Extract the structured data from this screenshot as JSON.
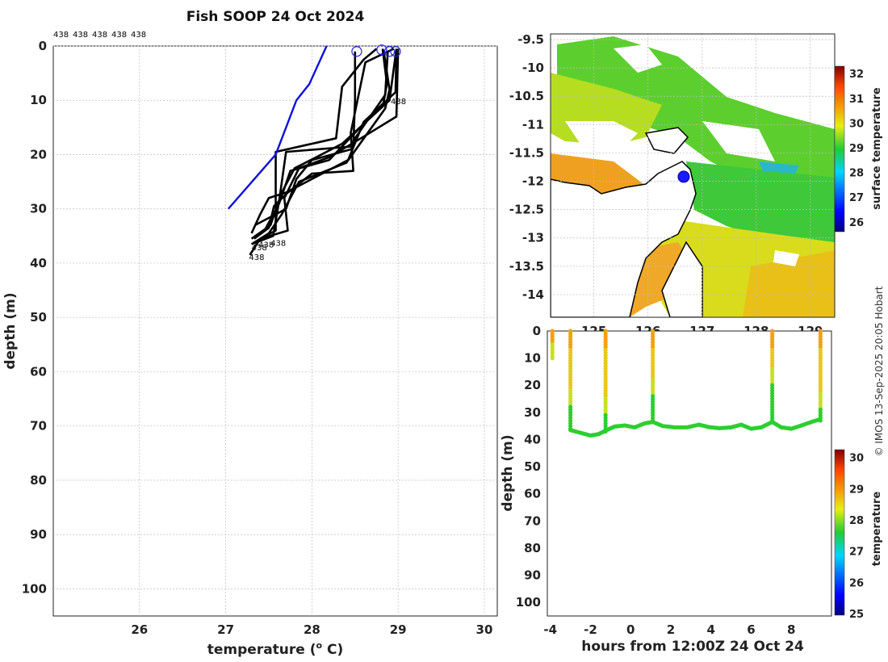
{
  "title": "Fish SOOP 24 Oct 2024",
  "credit": "© IMOS 13-Sep-2025 20:05 Hobart",
  "chart_data": [
    {
      "type": "line",
      "name": "profile-plot",
      "xlabel": "temperature (",
      "xlabel_sup": "o",
      "xlabel_unit": " C)",
      "ylabel": "depth (m)",
      "xlim": [
        25,
        30.15
      ],
      "ylim": [
        105,
        0
      ],
      "xticks": [
        "26",
        "27",
        "28",
        "29",
        "30"
      ],
      "yticks": [
        "0",
        "10",
        "20",
        "30",
        "40",
        "50",
        "60",
        "70",
        "80",
        "90",
        "100"
      ],
      "header_ids": [
        "438",
        "438",
        "438",
        "438",
        "438"
      ],
      "bottom_labels": [
        "438",
        "438",
        "438",
        "438"
      ],
      "reference_profile": {
        "color": "#1010dd",
        "points": [
          [
            28.17,
            0
          ],
          [
            27.97,
            7
          ],
          [
            27.82,
            10
          ],
          [
            27.58,
            20
          ],
          [
            27.03,
            30
          ]
        ]
      },
      "profiles": [
        [
          [
            28.75,
            0.5
          ],
          [
            28.6,
            2.5
          ],
          [
            28.35,
            7.5
          ],
          [
            28.28,
            17
          ],
          [
            27.58,
            19.5
          ],
          [
            27.58,
            34
          ],
          [
            27.4,
            35.5
          ],
          [
            27.28,
            38.5
          ]
        ],
        [
          [
            28.5,
            1
          ],
          [
            28.5,
            10
          ],
          [
            28.48,
            18.5
          ],
          [
            27.7,
            19.5
          ],
          [
            27.62,
            28.5
          ],
          [
            27.55,
            35
          ],
          [
            27.3,
            36.5
          ]
        ],
        [
          [
            28.95,
            0.5
          ],
          [
            28.62,
            3
          ],
          [
            28.45,
            16
          ],
          [
            28.48,
            23
          ],
          [
            28.0,
            23.5
          ],
          [
            27.72,
            27
          ],
          [
            27.56,
            29.5
          ],
          [
            27.5,
            33.5
          ],
          [
            27.33,
            35.5
          ]
        ],
        [
          [
            28.88,
            1
          ],
          [
            28.85,
            9
          ],
          [
            28.5,
            17
          ],
          [
            28.46,
            19
          ],
          [
            28.0,
            21
          ],
          [
            27.82,
            24.5
          ],
          [
            27.7,
            30
          ],
          [
            27.34,
            33
          ]
        ],
        [
          [
            28.98,
            1
          ],
          [
            28.97,
            8.5
          ],
          [
            28.6,
            14
          ],
          [
            28.42,
            21
          ],
          [
            28.0,
            24.5
          ],
          [
            27.7,
            27
          ],
          [
            27.5,
            28
          ],
          [
            27.4,
            31
          ],
          [
            27.3,
            34.5
          ]
        ],
        [
          [
            28.83,
            0.7
          ],
          [
            28.9,
            8
          ],
          [
            28.85,
            11.5
          ],
          [
            28.4,
            21.5
          ],
          [
            27.85,
            25
          ],
          [
            27.65,
            31
          ],
          [
            27.5,
            34.5
          ],
          [
            27.3,
            36.5
          ]
        ],
        [
          [
            29.0,
            0.5
          ],
          [
            28.98,
            13
          ],
          [
            28.62,
            16.5
          ],
          [
            28.2,
            20.5
          ],
          [
            27.85,
            22.5
          ],
          [
            27.68,
            28
          ],
          [
            27.72,
            34
          ],
          [
            27.4,
            35.5
          ]
        ],
        [
          [
            28.98,
            0.5
          ],
          [
            28.9,
            10
          ],
          [
            28.35,
            18
          ],
          [
            28.05,
            20.5
          ],
          [
            27.8,
            22.5
          ],
          [
            27.65,
            27
          ],
          [
            27.52,
            33
          ],
          [
            27.3,
            35.5
          ]
        ],
        [
          [
            28.82,
            0.5
          ],
          [
            28.87,
            7
          ],
          [
            28.83,
            10.5
          ],
          [
            28.2,
            21
          ],
          [
            27.75,
            23
          ],
          [
            27.62,
            29
          ],
          [
            27.45,
            34
          ],
          [
            27.34,
            35
          ]
        ]
      ],
      "surface_markers": [
        [
          28.52,
          1
        ],
        [
          28.81,
          0.7
        ],
        [
          28.9,
          1
        ],
        [
          28.97,
          1
        ]
      ]
    },
    {
      "type": "heatmap",
      "name": "sst-map",
      "colorbar_label": "surface temperature",
      "colorbar_ticks": [
        "26",
        "27",
        "28",
        "29",
        "30",
        "31",
        "32"
      ],
      "yticks": [
        "-9.5",
        "-10",
        "-10.5",
        "-11",
        "-11.5",
        "-12",
        "-12.5",
        "-13",
        "-13.5",
        "-14"
      ],
      "xticks": [
        "125",
        "126",
        "127",
        "128",
        "129"
      ],
      "xlim": [
        124.2,
        129.45
      ],
      "ylim": [
        -14.4,
        -9.4
      ],
      "vessel_position": [
        126.66,
        -11.92
      ]
    },
    {
      "type": "scatter",
      "name": "depth-time-section",
      "xlabel": "hours from 12:00Z 24 Oct 24",
      "ylabel": "depth (m)",
      "colorbar_label": "temperature",
      "colorbar_ticks": [
        "25",
        "26",
        "27",
        "28",
        "29",
        "30"
      ],
      "xticks": [
        "-4",
        "-2",
        "0",
        "2",
        "4",
        "6",
        "8"
      ],
      "yticks": [
        "0",
        "10",
        "20",
        "30",
        "40",
        "50",
        "60",
        "70",
        "80",
        "90",
        "100"
      ],
      "xlim": [
        -4.15,
        10
      ],
      "ylim": [
        105,
        0
      ],
      "casts": [
        {
          "x": -3.9,
          "max_depth": 10,
          "yellow_to": 10
        },
        {
          "x": -3.0,
          "max_depth": 36,
          "yellow_to": 27
        },
        {
          "x": -1.25,
          "max_depth": 37,
          "yellow_to": 30
        },
        {
          "x": 1.1,
          "max_depth": 33,
          "yellow_to": 23
        },
        {
          "x": 7.05,
          "max_depth": 33,
          "yellow_to": 19
        },
        {
          "x": 9.45,
          "max_depth": 33,
          "yellow_to": 28
        }
      ],
      "bottom_track": [
        [
          -3.0,
          36.5
        ],
        [
          -2.5,
          37.5
        ],
        [
          -2.0,
          38.5
        ],
        [
          -1.6,
          38
        ],
        [
          -1.2,
          36.5
        ],
        [
          -0.8,
          35.2
        ],
        [
          -0.3,
          34.8
        ],
        [
          0.2,
          35.5
        ],
        [
          0.7,
          34
        ],
        [
          1.1,
          33.5
        ],
        [
          1.6,
          35
        ],
        [
          2.2,
          35.5
        ],
        [
          2.8,
          35.5
        ],
        [
          3.4,
          34.5
        ],
        [
          3.9,
          35.4
        ],
        [
          4.4,
          35.8
        ],
        [
          5.0,
          35.5
        ],
        [
          5.5,
          34.5
        ],
        [
          6.0,
          36
        ],
        [
          6.5,
          35.5
        ],
        [
          7.05,
          33.5
        ],
        [
          7.5,
          35.5
        ],
        [
          8.0,
          36
        ],
        [
          8.5,
          34.8
        ],
        [
          9.0,
          33.5
        ],
        [
          9.45,
          32.5
        ]
      ]
    }
  ]
}
